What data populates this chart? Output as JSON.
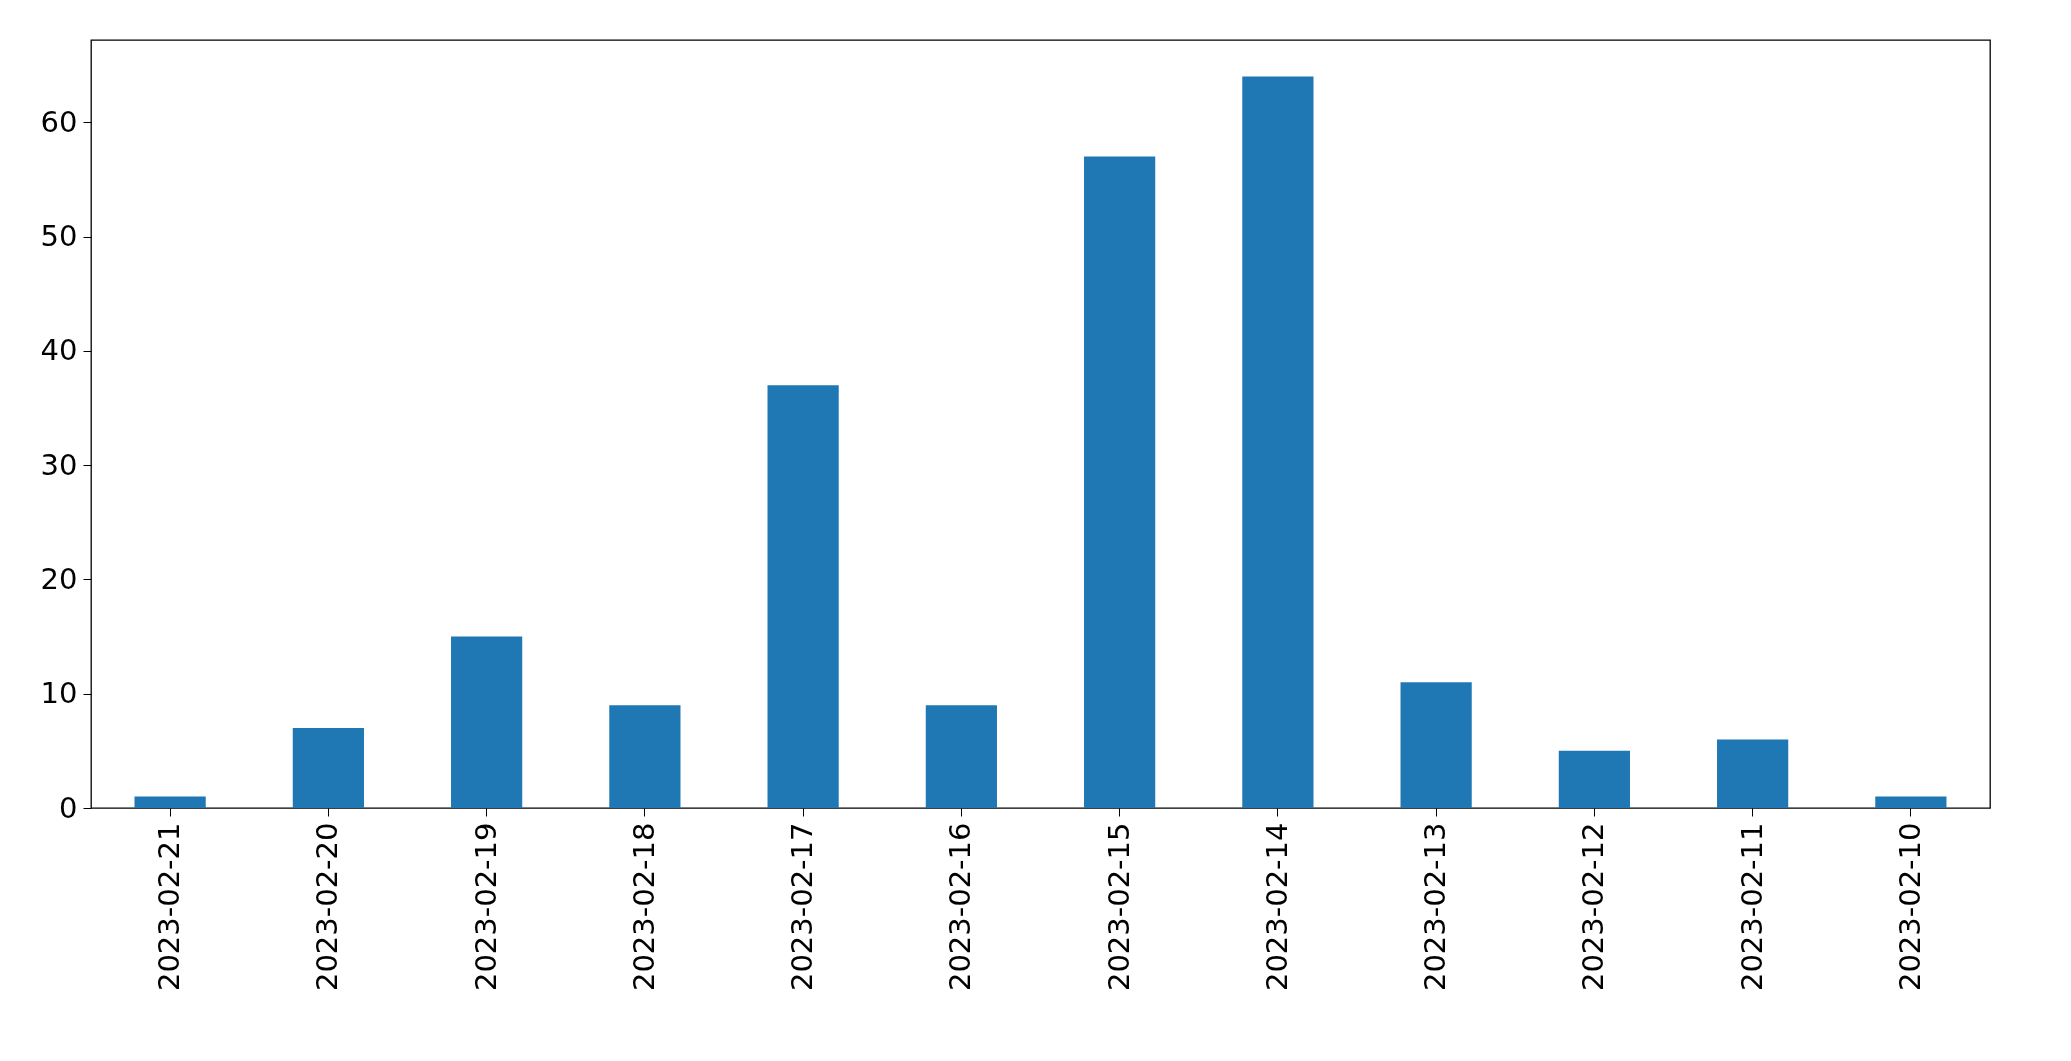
{
  "chart_data": {
    "type": "bar",
    "categories": [
      "2023-02-21",
      "2023-02-20",
      "2023-02-19",
      "2023-02-18",
      "2023-02-17",
      "2023-02-16",
      "2023-02-15",
      "2023-02-14",
      "2023-02-13",
      "2023-02-12",
      "2023-02-11",
      "2023-02-10"
    ],
    "values": [
      1,
      7,
      15,
      9,
      37,
      9,
      57,
      64,
      11,
      5,
      6,
      1
    ],
    "color": "#1f77b4",
    "ylim": [
      0,
      67.2
    ],
    "yticks": [
      0,
      10,
      20,
      30,
      40,
      50,
      60
    ],
    "grid": false
  }
}
